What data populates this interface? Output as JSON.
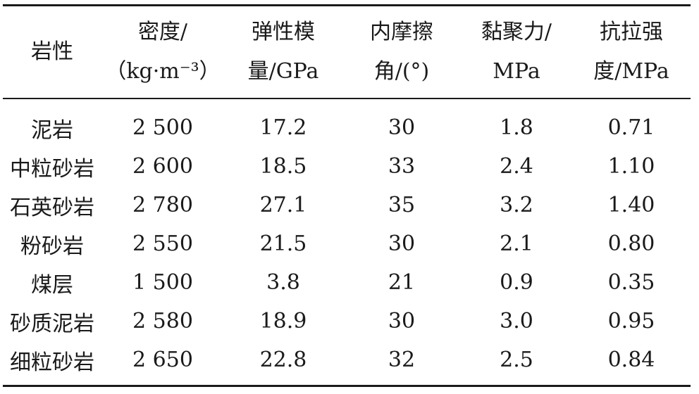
{
  "headers": {
    "rock": [
      "岩性"
    ],
    "density": [
      "密度/",
      "（kg·m⁻³）"
    ],
    "modulus": [
      "弹性模",
      "量/GPa"
    ],
    "friction": [
      "内摩擦",
      "角/(°)"
    ],
    "cohesion": [
      "黏聚力/",
      "MPa"
    ],
    "tensile": [
      "抗拉强",
      "度/MPa"
    ]
  },
  "rows": [
    {
      "rock": "泥岩",
      "density": "2 500",
      "modulus": "17.2",
      "friction": "30",
      "cohesion": "1.8",
      "tensile": "0.71"
    },
    {
      "rock": "中粒砂岩",
      "density": "2 600",
      "modulus": "18.5",
      "friction": "33",
      "cohesion": "2.4",
      "tensile": "1.10"
    },
    {
      "rock": "石英砂岩",
      "density": "2 780",
      "modulus": "27.1",
      "friction": "35",
      "cohesion": "3.2",
      "tensile": "1.40"
    },
    {
      "rock": "粉砂岩",
      "density": "2 550",
      "modulus": "21.5",
      "friction": "30",
      "cohesion": "2.1",
      "tensile": "0.80"
    },
    {
      "rock": "煤层",
      "density": "1 500",
      "modulus": "3.8",
      "friction": "21",
      "cohesion": "0.9",
      "tensile": "0.35"
    },
    {
      "rock": "砂质泥岩",
      "density": "2 580",
      "modulus": "18.9",
      "friction": "30",
      "cohesion": "3.0",
      "tensile": "0.95"
    },
    {
      "rock": "细粒砂岩",
      "density": "2 650",
      "modulus": "22.8",
      "friction": "32",
      "cohesion": "2.5",
      "tensile": "0.84"
    }
  ]
}
